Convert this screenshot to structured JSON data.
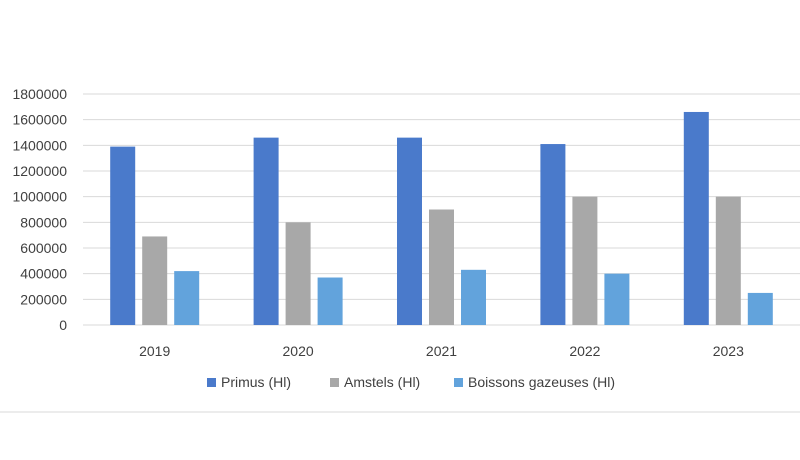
{
  "chart_data": {
    "type": "bar",
    "categories": [
      "2019",
      "2020",
      "2021",
      "2022",
      "2023"
    ],
    "series": [
      {
        "name": "Primus (Hl)",
        "values": [
          1390000,
          1460000,
          1460000,
          1410000,
          1660000
        ],
        "color": "#4a7acb"
      },
      {
        "name": "Amstels (Hl)",
        "values": [
          690000,
          800000,
          900000,
          1000000,
          1000000
        ],
        "color": "#a8a8a8"
      },
      {
        "name": "Boissons gazeuses (Hl)",
        "values": [
          420000,
          370000,
          430000,
          400000,
          250000
        ],
        "color": "#62a3dc"
      }
    ],
    "y_ticks": [
      "0",
      "200000",
      "400000",
      "600000",
      "800000",
      "1000000",
      "1200000",
      "1400000",
      "1600000",
      "1800000"
    ],
    "ylim": [
      0,
      1800000
    ],
    "grid": true,
    "legend_position": "bottom",
    "title": "",
    "xlabel": "",
    "ylabel": ""
  }
}
